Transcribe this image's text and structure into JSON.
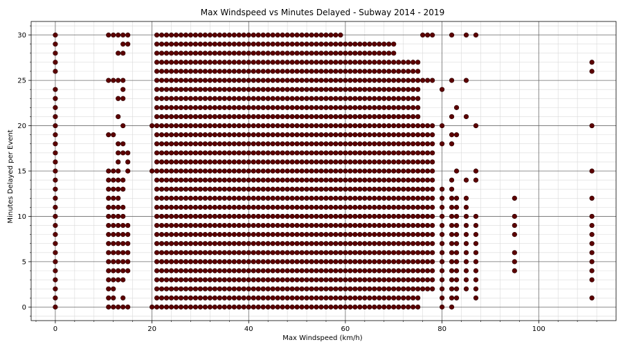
{
  "chart_data": {
    "type": "scatter",
    "title": "Max Windspeed vs Minutes Delayed - Subway 2014 - 2019",
    "xlabel": "Max Windspeed (km/h)",
    "ylabel": "Minutes Delayed per Event",
    "xlim": [
      -5,
      116
    ],
    "ylim": [
      -1.5,
      31.5
    ],
    "xticks": [
      0,
      20,
      40,
      60,
      80,
      100
    ],
    "yticks": [
      0,
      5,
      10,
      15,
      20,
      25,
      30
    ],
    "grid": "major and minor",
    "marker_color": "#5c0000",
    "point_groups": [
      {
        "x": [
          0
        ],
        "y_range": [
          0,
          30
        ],
        "missing": [
          25
        ]
      },
      {
        "x": [
          11,
          12
        ],
        "y_range": [
          0,
          19
        ],
        "missing": [
          16,
          17,
          18
        ],
        "extra_y": [
          25,
          30
        ]
      },
      {
        "x": [
          13
        ],
        "y_range": [
          0,
          21
        ],
        "missing": [
          1,
          2,
          19,
          20
        ],
        "extra_y": [
          23,
          25,
          28,
          30
        ]
      },
      {
        "x": [
          14
        ],
        "y_range": [
          0,
          18
        ],
        "missing": [
          2,
          12,
          15,
          16
        ],
        "extra_y": [
          20,
          23,
          24,
          25,
          28,
          29,
          30
        ]
      },
      {
        "x": [
          15
        ],
        "y_range": [
          0,
          17
        ],
        "missing": [
          1,
          2,
          3,
          10,
          11,
          12,
          13,
          14
        ],
        "extra_y": [
          29,
          30
        ]
      },
      {
        "x": [
          20
        ],
        "y_range": [
          0,
          20
        ],
        "missing": [
          1,
          2,
          3,
          4,
          5,
          6,
          7,
          8,
          9,
          10,
          11,
          12,
          13,
          14,
          16,
          17,
          18,
          19
        ]
      },
      {
        "x_range": [
          21,
          59
        ],
        "y_range": [
          0,
          30
        ]
      },
      {
        "x_range": [
          60,
          70
        ],
        "y_range": [
          0,
          29
        ]
      },
      {
        "x_range": [
          71,
          75
        ],
        "y_range": [
          0,
          27
        ]
      },
      {
        "x_range": [
          76,
          78
        ],
        "y_range": [
          2,
          20
        ],
        "extra_y": [
          25,
          30
        ]
      },
      {
        "x": [
          80
        ],
        "y_range": [
          0,
          13
        ],
        "extra_y": [
          18,
          20,
          24
        ]
      },
      {
        "x": [
          82
        ],
        "y_range": [
          0,
          14
        ],
        "extra_y": [
          18,
          19,
          21,
          25,
          30
        ]
      },
      {
        "x": [
          83
        ],
        "y_range": [
          1,
          12
        ],
        "extra_y": [
          15,
          19,
          22
        ]
      },
      {
        "x": [
          85
        ],
        "y_range": [
          2,
          12
        ],
        "extra_y": [
          14,
          21,
          25,
          30
        ]
      },
      {
        "x": [
          87
        ],
        "y_range": [
          2,
          10
        ],
        "extra_y": [
          1,
          14,
          15,
          20,
          30
        ]
      },
      {
        "x": [
          95
        ],
        "y_range": [
          4,
          12
        ],
        "missing": [
          7,
          11
        ]
      },
      {
        "x": [
          111
        ],
        "y_range": [
          1,
          12
        ],
        "missing": [
          2,
          11
        ],
        "extra_y": [
          15,
          20,
          26,
          27
        ]
      }
    ]
  }
}
